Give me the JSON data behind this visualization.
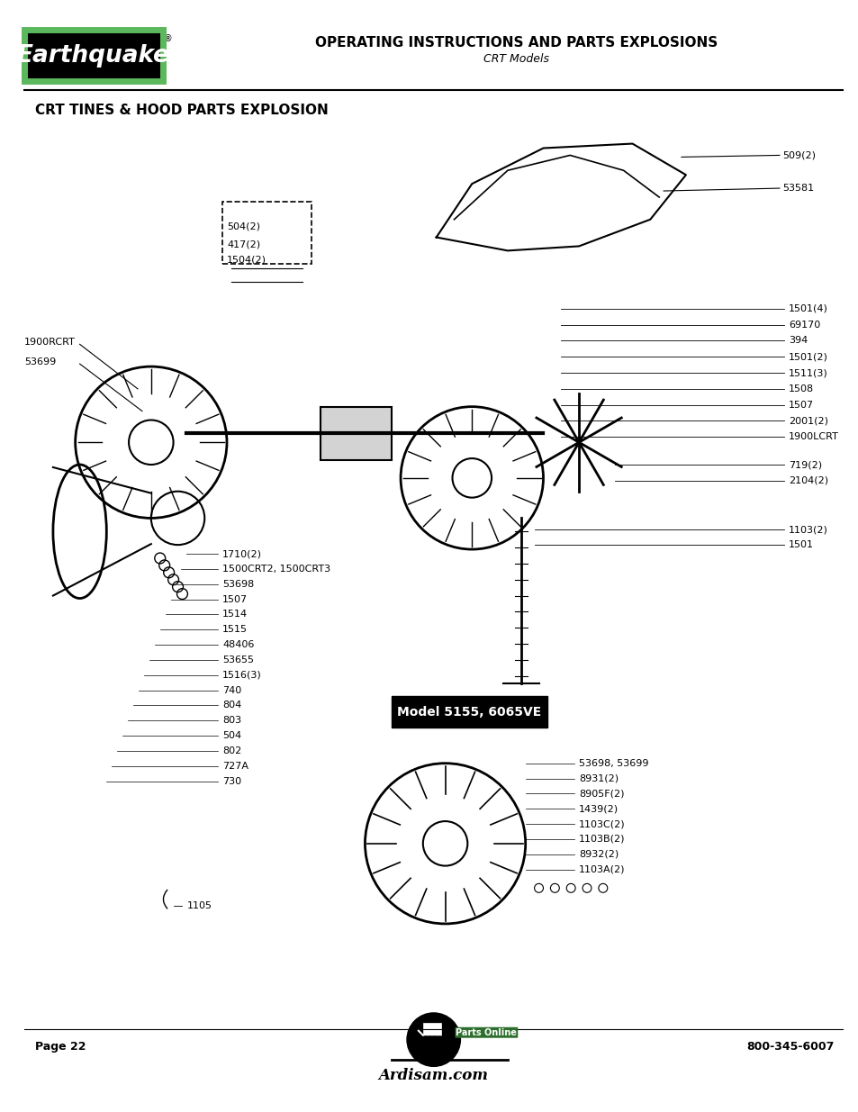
{
  "page_bg": "#ffffff",
  "title_main": "OPERATING INSTRUCTIONS AND PARTS EXPLOSIONS",
  "title_sub": "CRT Models",
  "section_title": "CRT TINES & HOOD PARTS EXPLOSION",
  "page_num": "Page 22",
  "phone": "800-345-6007",
  "website": "Ardisam.com",
  "logo_text": "Earthquake",
  "logo_bg": "#000000",
  "logo_border": "#5cb85c",
  "model_box_text": "Model 5155, 6065VE",
  "model_box_bg": "#000000",
  "model_box_text_color": "#ffffff",
  "right_labels_top": [
    "509(2)",
    "53581"
  ],
  "right_labels_mid": [
    "1501(4)",
    "69170",
    "394",
    "1501(2)",
    "1511(3)",
    "1508",
    "1507",
    "2001(2)",
    "1900LCRT"
  ],
  "right_labels_lower": [
    "719(2)",
    "2104(2)"
  ],
  "right_labels_bottom": [
    "1103(2)",
    "1501"
  ],
  "left_labels": [
    "1900RCRT",
    "53699"
  ],
  "bottom_center_labels": [
    "1710(2)",
    "1500CRT2, 1500CRT3",
    "53698",
    "1507",
    "1514",
    "1515",
    "48406",
    "53655",
    "1516(3)",
    "740",
    "804",
    "803",
    "504",
    "802",
    "727A",
    "730"
  ],
  "bottom_right_labels": [
    "53698, 53699",
    "8931(2)",
    "8905F(2)",
    "1439(2)",
    "1103C(2)",
    "1103B(2)",
    "8932(2)",
    "1103A(2)"
  ],
  "bottom_label": "1105"
}
